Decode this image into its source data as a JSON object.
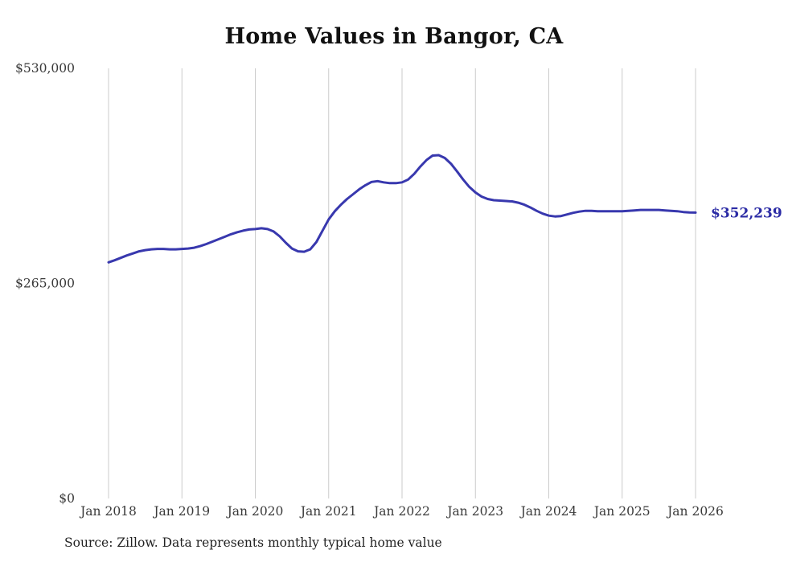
{
  "chart_data": {
    "type": "line",
    "title": "Home Values in Bangor, CA",
    "source_note": "Source: Zillow. Data represents monthly typical home value",
    "end_label": "$352,239",
    "line_color": "#3838ae",
    "end_label_color": "#2b2ba5",
    "grid_color": "#cbcbcb",
    "axis_text_color": "#3a3a3a",
    "grid": "vertical-only",
    "legend": "none",
    "ylim": [
      0,
      530000
    ],
    "yticks": [
      {
        "value": 0,
        "label": "$0"
      },
      {
        "value": 265000,
        "label": "$265,000"
      },
      {
        "value": 530000,
        "label": "$530,000"
      }
    ],
    "x_tick_labels": [
      "Jan 2018",
      "Jan 2019",
      "Jan 2020",
      "Jan 2021",
      "Jan 2022",
      "Jan 2023",
      "Jan 2024",
      "Jan 2025",
      "Jan 2026"
    ],
    "x_tick_month_indices": [
      0,
      12,
      24,
      36,
      48,
      60,
      72,
      84,
      96
    ],
    "series": [
      {
        "name": "Typical home value",
        "x_months": [
          "2018-01",
          "2018-02",
          "2018-03",
          "2018-04",
          "2018-05",
          "2018-06",
          "2018-07",
          "2018-08",
          "2018-09",
          "2018-10",
          "2018-11",
          "2018-12",
          "2019-01",
          "2019-02",
          "2019-03",
          "2019-04",
          "2019-05",
          "2019-06",
          "2019-07",
          "2019-08",
          "2019-09",
          "2019-10",
          "2019-11",
          "2019-12",
          "2020-01",
          "2020-02",
          "2020-03",
          "2020-04",
          "2020-05",
          "2020-06",
          "2020-07",
          "2020-08",
          "2020-09",
          "2020-10",
          "2020-11",
          "2020-12",
          "2021-01",
          "2021-02",
          "2021-03",
          "2021-04",
          "2021-05",
          "2021-06",
          "2021-07",
          "2021-08",
          "2021-09",
          "2021-10",
          "2021-11",
          "2021-12",
          "2022-01",
          "2022-02",
          "2022-03",
          "2022-04",
          "2022-05",
          "2022-06",
          "2022-07",
          "2022-08",
          "2022-09",
          "2022-10",
          "2022-11",
          "2022-12",
          "2023-01",
          "2023-02",
          "2023-03",
          "2023-04",
          "2023-05",
          "2023-06",
          "2023-07",
          "2023-08",
          "2023-09",
          "2023-10",
          "2023-11",
          "2023-12",
          "2024-01",
          "2024-02",
          "2024-03",
          "2024-04",
          "2024-05",
          "2024-06",
          "2024-07",
          "2024-08",
          "2024-09",
          "2024-10",
          "2024-11",
          "2024-12",
          "2025-01",
          "2025-02",
          "2025-03",
          "2025-04",
          "2025-05",
          "2025-06",
          "2025-07",
          "2025-08",
          "2025-09",
          "2025-10",
          "2025-11",
          "2025-12",
          "2026-01"
        ],
        "values": [
          291000,
          293500,
          296500,
          299500,
          302000,
          304500,
          306000,
          307000,
          307500,
          307500,
          307000,
          307000,
          307500,
          308000,
          309000,
          311000,
          313500,
          316500,
          319500,
          322500,
          325500,
          328000,
          330000,
          331500,
          332000,
          333000,
          332000,
          329000,
          323000,
          315000,
          308000,
          304500,
          304000,
          307000,
          316000,
          330000,
          344000,
          354000,
          362000,
          369000,
          375000,
          381000,
          386000,
          390000,
          391000,
          389500,
          388500,
          388500,
          389500,
          393000,
          400000,
          409000,
          417000,
          422500,
          423000,
          419500,
          412500,
          403000,
          393000,
          384000,
          377000,
          372000,
          369000,
          367500,
          367000,
          366500,
          366000,
          364500,
          362000,
          358500,
          354500,
          351000,
          348500,
          347500,
          348000,
          350000,
          352000,
          353500,
          354500,
          354500,
          354000,
          354000,
          354000,
          354000,
          354000,
          354500,
          355000,
          355500,
          355500,
          355500,
          355500,
          355000,
          354500,
          354000,
          353000,
          352500,
          352239
        ]
      }
    ],
    "final_value": 352239
  }
}
